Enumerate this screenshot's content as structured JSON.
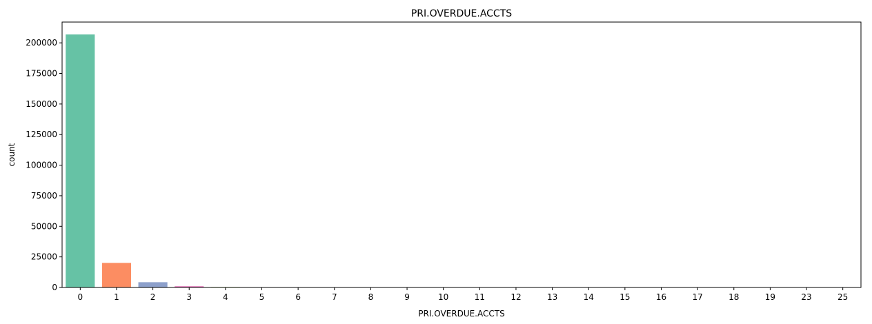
{
  "chart_data": {
    "type": "bar",
    "title": "PRI.OVERDUE.ACCTS",
    "xlabel": "PRI.OVERDUE.ACCTS",
    "ylabel": "count",
    "categories": [
      "0",
      "1",
      "2",
      "3",
      "4",
      "5",
      "6",
      "7",
      "8",
      "9",
      "10",
      "11",
      "12",
      "13",
      "14",
      "15",
      "16",
      "17",
      "18",
      "19",
      "23",
      "25"
    ],
    "values": [
      206900,
      20100,
      4300,
      1100,
      380,
      180,
      60,
      35,
      25,
      15,
      10,
      8,
      6,
      4,
      3,
      3,
      2,
      2,
      1,
      1,
      1,
      1
    ],
    "ylim": [
      0,
      217000
    ],
    "yticks": [
      0,
      25000,
      50000,
      75000,
      100000,
      125000,
      150000,
      175000,
      200000
    ],
    "colors": [
      "#66c2a5",
      "#fc8d62",
      "#8da0cb",
      "#e78ac3",
      "#a6d854",
      "#ffd92f",
      "#e5c494",
      "#b3b3b3"
    ],
    "grid": false,
    "legend": "none"
  }
}
